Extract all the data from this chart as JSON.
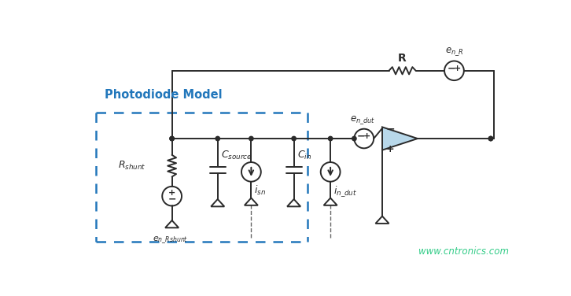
{
  "bg_color": "#ffffff",
  "line_color": "#2a2a2a",
  "blue_color": "#2277bb",
  "op_amp_fill": "#b8d8ea",
  "dashed_box_color": "#2277bb",
  "watermark": "www.cntronics.com",
  "watermark_color": "#33cc88",
  "title_text": "Photodiode Model",
  "title_color": "#2277bb",
  "figsize": [
    7.26,
    3.76
  ],
  "dpi": 100
}
